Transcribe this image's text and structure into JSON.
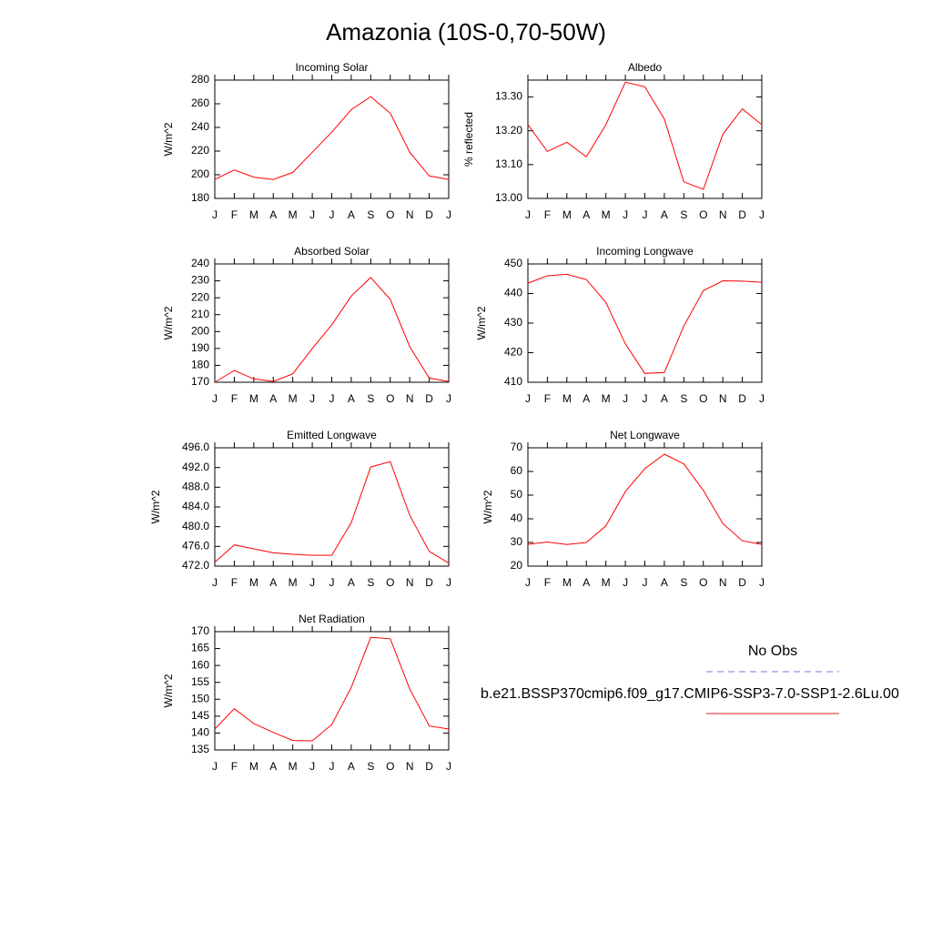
{
  "title": "Amazonia (10S-0,70-50W)",
  "legend": {
    "entries": [
      {
        "label": "No Obs",
        "color": "#7777dd",
        "dashed": true
      },
      {
        "label": "b.e21.BSSP370cmip6.f09_g17.CMIP6-SSP3-7.0-SSP1-2.6Lu.00",
        "color": "#e02020",
        "dashed": false
      }
    ]
  },
  "chart_data": [
    {
      "type": "line",
      "title": "Incoming Solar",
      "y_label": "W/m^2",
      "categories": [
        "J",
        "F",
        "M",
        "A",
        "M",
        "J",
        "J",
        "A",
        "S",
        "O",
        "N",
        "D",
        "J"
      ],
      "ylim": [
        180,
        280
      ],
      "yticks": [
        180,
        200,
        220,
        240,
        260,
        280
      ],
      "series": [
        {
          "color": "#ff0000",
          "values": [
            196,
            204,
            198,
            196,
            202,
            219,
            236,
            255,
            266,
            252,
            219,
            199,
            196
          ]
        }
      ]
    },
    {
      "type": "line",
      "title": "Albedo",
      "y_label": "% reflected",
      "categories": [
        "J",
        "F",
        "M",
        "A",
        "M",
        "J",
        "J",
        "A",
        "S",
        "O",
        "N",
        "D",
        "J"
      ],
      "ylim": [
        13.0,
        13.35
      ],
      "yticks": [
        {
          "value": 13.0,
          "label": "13.00"
        },
        {
          "value": 13.1,
          "label": "13.10"
        },
        {
          "value": 13.2,
          "label": "13.20"
        },
        {
          "value": 13.3,
          "label": "13.30"
        }
      ],
      "series": [
        {
          "color": "#ff0000",
          "values": [
            13.218,
            13.139,
            13.166,
            13.123,
            13.218,
            13.344,
            13.33,
            13.235,
            13.049,
            13.027,
            13.19,
            13.265,
            13.218
          ]
        }
      ]
    },
    {
      "type": "line",
      "title": "Absorbed Solar",
      "y_label": "W/m^2",
      "categories": [
        "J",
        "F",
        "M",
        "A",
        "M",
        "J",
        "J",
        "A",
        "S",
        "O",
        "N",
        "D",
        "J"
      ],
      "ylim": [
        170,
        240
      ],
      "yticks": [
        170,
        180,
        190,
        200,
        210,
        220,
        230,
        240
      ],
      "series": [
        {
          "color": "#ff0000",
          "values": [
            170,
            177,
            172,
            170.5,
            175,
            190,
            204,
            221,
            232,
            219,
            191,
            172.5,
            170.5
          ]
        }
      ]
    },
    {
      "type": "line",
      "title": "Incoming Longwave",
      "y_label": "W/m^2",
      "categories": [
        "J",
        "F",
        "M",
        "A",
        "M",
        "J",
        "J",
        "A",
        "S",
        "O",
        "N",
        "D",
        "J"
      ],
      "ylim": [
        410,
        450
      ],
      "yticks": [
        410,
        420,
        430,
        440,
        450
      ],
      "series": [
        {
          "color": "#ff0000",
          "values": [
            443.5,
            446,
            446.5,
            444.7,
            437,
            423,
            413,
            413.3,
            429,
            441,
            444.3,
            444.2,
            443.8
          ]
        }
      ]
    },
    {
      "type": "line",
      "title": "Emitted Longwave",
      "y_label": "W/m^2",
      "categories": [
        "J",
        "F",
        "M",
        "A",
        "M",
        "J",
        "J",
        "A",
        "S",
        "O",
        "N",
        "D",
        "J"
      ],
      "ylim": [
        472,
        496
      ],
      "yticks": [
        {
          "value": 472,
          "label": "472.0"
        },
        {
          "value": 476,
          "label": "476.0"
        },
        {
          "value": 480,
          "label": "480.0"
        },
        {
          "value": 484,
          "label": "484.0"
        },
        {
          "value": 488,
          "label": "488.0"
        },
        {
          "value": 492,
          "label": "492.0"
        },
        {
          "value": 496,
          "label": "496.0"
        }
      ],
      "series": [
        {
          "color": "#ff0000",
          "values": [
            472.8,
            476.3,
            475.5,
            474.7,
            474.4,
            474.2,
            474.2,
            480.8,
            492.1,
            493.2,
            482.3,
            475,
            472.6
          ]
        }
      ]
    },
    {
      "type": "line",
      "title": "Net Longwave",
      "y_label": "W/m^2",
      "categories": [
        "J",
        "F",
        "M",
        "A",
        "M",
        "J",
        "J",
        "A",
        "S",
        "O",
        "N",
        "D",
        "J"
      ],
      "ylim": [
        20,
        70
      ],
      "yticks": [
        20,
        30,
        40,
        50,
        60,
        70
      ],
      "series": [
        {
          "color": "#ff0000",
          "values": [
            29.2,
            30.2,
            29.1,
            30,
            37,
            51.5,
            61.2,
            67.3,
            63.2,
            52,
            38,
            30.7,
            29.2
          ]
        }
      ]
    },
    {
      "type": "line",
      "title": "Net Radiation",
      "y_label": "W/m^2",
      "categories": [
        "J",
        "F",
        "M",
        "A",
        "M",
        "J",
        "J",
        "A",
        "S",
        "O",
        "N",
        "D",
        "J"
      ],
      "ylim": [
        135,
        170
      ],
      "yticks": [
        135,
        140,
        145,
        150,
        155,
        160,
        165,
        170
      ],
      "series": [
        {
          "color": "#ff0000",
          "values": [
            141.2,
            147.2,
            142.8,
            140.2,
            137.8,
            137.7,
            142.5,
            153.5,
            168.3,
            167.9,
            153,
            142.1,
            141.2
          ]
        }
      ]
    }
  ]
}
